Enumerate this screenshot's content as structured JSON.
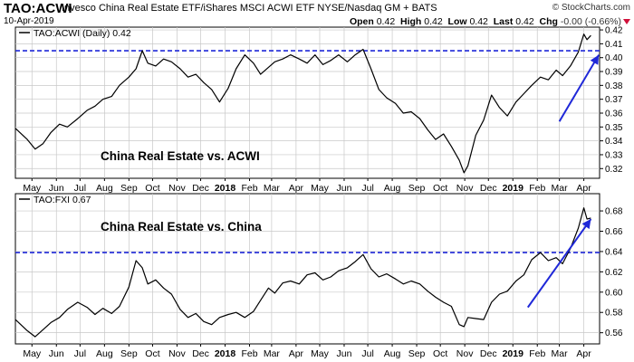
{
  "header": {
    "symbol": "TAO:ACWI",
    "description": "Invesco China Real Estate ETF/iShares MSCI ACWI ETF  NYSE/Nasdaq GM + BATS",
    "date": "10-Apr-2019",
    "brand": "© StockCharts.com",
    "open_label": "Open",
    "open": "0.42",
    "high_label": "High",
    "high": "0.42",
    "low_label": "Low",
    "low": "0.42",
    "last_label": "Last",
    "last": "0.42",
    "chg_label": "Chg",
    "chg": "-0.00 (-0.66%)",
    "change_color": "#d0103a"
  },
  "colors": {
    "price_line": "#000000",
    "trend_arrow": "#1f28d8",
    "resistance_line": "#1f28d8",
    "grid": "#c8c8c8"
  },
  "chart_data": [
    {
      "type": "line",
      "legend": "TAO:ACWI (Daily) 0.42",
      "annotation": "China Real Estate vs. ACWI",
      "y_ticks": [
        "0.32",
        "0.33",
        "0.34",
        "0.35",
        "0.36",
        "0.37",
        "0.38",
        "0.39",
        "0.40",
        "0.41",
        "0.42"
      ],
      "ylim": [
        0.313,
        0.422
      ],
      "resistance_level": 0.405,
      "trend_arrow": {
        "from": [
          "2019-03-01",
          0.354
        ],
        "to": [
          "2019-04-20",
          0.402
        ]
      },
      "series": [
        {
          "x": [
            "2017-04-10",
            "2017-04-25",
            "2017-05-05",
            "2017-05-15",
            "2017-05-25",
            "2017-06-05",
            "2017-06-15",
            "2017-06-28",
            "2017-07-10",
            "2017-07-20",
            "2017-07-30",
            "2017-08-10",
            "2017-08-20",
            "2017-09-01",
            "2017-09-10",
            "2017-09-18",
            "2017-09-25",
            "2017-10-05",
            "2017-10-15",
            "2017-10-25",
            "2017-11-05",
            "2017-11-15",
            "2017-11-25",
            "2017-12-05",
            "2017-12-15",
            "2017-12-25",
            "2018-01-05",
            "2018-01-15",
            "2018-01-26",
            "2018-02-06",
            "2018-02-15",
            "2018-02-25",
            "2018-03-05",
            "2018-03-15",
            "2018-03-25",
            "2018-04-05",
            "2018-04-15",
            "2018-04-25",
            "2018-05-05",
            "2018-05-15",
            "2018-05-25",
            "2018-06-05",
            "2018-06-15",
            "2018-06-25",
            "2018-07-05",
            "2018-07-15",
            "2018-07-25",
            "2018-08-05",
            "2018-08-15",
            "2018-08-25",
            "2018-09-05",
            "2018-09-15",
            "2018-09-25",
            "2018-10-05",
            "2018-10-15",
            "2018-10-25",
            "2018-10-31",
            "2018-11-05",
            "2018-11-15",
            "2018-11-25",
            "2018-12-05",
            "2018-12-15",
            "2018-12-25",
            "2019-01-05",
            "2019-01-15",
            "2019-01-25",
            "2019-02-05",
            "2019-02-15",
            "2019-02-25",
            "2019-03-05",
            "2019-03-15",
            "2019-03-25",
            "2019-04-01",
            "2019-04-05",
            "2019-04-10"
          ],
          "values": [
            0.349,
            0.341,
            0.334,
            0.338,
            0.346,
            0.352,
            0.35,
            0.356,
            0.362,
            0.365,
            0.37,
            0.372,
            0.38,
            0.386,
            0.392,
            0.405,
            0.396,
            0.394,
            0.399,
            0.397,
            0.392,
            0.386,
            0.388,
            0.382,
            0.377,
            0.368,
            0.378,
            0.392,
            0.402,
            0.396,
            0.388,
            0.393,
            0.397,
            0.399,
            0.402,
            0.399,
            0.396,
            0.402,
            0.395,
            0.398,
            0.402,
            0.397,
            0.402,
            0.406,
            0.392,
            0.377,
            0.371,
            0.367,
            0.36,
            0.361,
            0.356,
            0.348,
            0.341,
            0.345,
            0.336,
            0.326,
            0.317,
            0.322,
            0.344,
            0.355,
            0.373,
            0.364,
            0.358,
            0.368,
            0.374,
            0.38,
            0.386,
            0.384,
            0.391,
            0.387,
            0.394,
            0.404,
            0.417,
            0.413,
            0.416
          ]
        }
      ]
    },
    {
      "type": "line",
      "legend": "TAO:FXI 0.67",
      "annotation": "China Real Estate vs. China",
      "y_ticks": [
        "0.56",
        "0.58",
        "0.60",
        "0.62",
        "0.64",
        "0.66",
        "0.68"
      ],
      "ylim": [
        0.549,
        0.697
      ],
      "resistance_level": 0.639,
      "trend_arrow": {
        "from": [
          "2019-01-20",
          0.585
        ],
        "to": [
          "2019-04-10",
          0.672
        ]
      },
      "series": [
        {
          "x": [
            "2017-04-10",
            "2017-04-25",
            "2017-05-05",
            "2017-05-15",
            "2017-05-25",
            "2017-06-05",
            "2017-06-15",
            "2017-06-28",
            "2017-07-10",
            "2017-07-20",
            "2017-07-30",
            "2017-08-10",
            "2017-08-20",
            "2017-09-01",
            "2017-09-10",
            "2017-09-18",
            "2017-09-25",
            "2017-10-05",
            "2017-10-15",
            "2017-10-25",
            "2017-11-05",
            "2017-11-15",
            "2017-11-25",
            "2017-12-05",
            "2017-12-15",
            "2017-12-25",
            "2018-01-05",
            "2018-01-15",
            "2018-01-26",
            "2018-02-06",
            "2018-02-15",
            "2018-02-25",
            "2018-03-05",
            "2018-03-15",
            "2018-03-25",
            "2018-04-05",
            "2018-04-15",
            "2018-04-25",
            "2018-05-05",
            "2018-05-15",
            "2018-05-25",
            "2018-06-05",
            "2018-06-15",
            "2018-06-25",
            "2018-07-05",
            "2018-07-15",
            "2018-07-25",
            "2018-08-05",
            "2018-08-15",
            "2018-08-25",
            "2018-09-05",
            "2018-09-15",
            "2018-09-25",
            "2018-10-05",
            "2018-10-15",
            "2018-10-25",
            "2018-10-31",
            "2018-11-05",
            "2018-11-15",
            "2018-11-25",
            "2018-12-05",
            "2018-12-15",
            "2018-12-25",
            "2019-01-05",
            "2019-01-15",
            "2019-01-25",
            "2019-02-05",
            "2019-02-15",
            "2019-02-25",
            "2019-03-05",
            "2019-03-15",
            "2019-03-25",
            "2019-04-01",
            "2019-04-05",
            "2019-04-10"
          ],
          "values": [
            0.573,
            0.562,
            0.556,
            0.563,
            0.57,
            0.575,
            0.583,
            0.59,
            0.585,
            0.578,
            0.584,
            0.579,
            0.586,
            0.605,
            0.631,
            0.624,
            0.608,
            0.612,
            0.604,
            0.598,
            0.583,
            0.575,
            0.579,
            0.571,
            0.568,
            0.575,
            0.578,
            0.58,
            0.575,
            0.581,
            0.592,
            0.604,
            0.599,
            0.609,
            0.611,
            0.608,
            0.617,
            0.619,
            0.612,
            0.615,
            0.621,
            0.624,
            0.63,
            0.637,
            0.623,
            0.615,
            0.618,
            0.613,
            0.608,
            0.611,
            0.608,
            0.601,
            0.595,
            0.59,
            0.586,
            0.568,
            0.566,
            0.575,
            0.574,
            0.573,
            0.59,
            0.598,
            0.601,
            0.611,
            0.617,
            0.632,
            0.639,
            0.631,
            0.634,
            0.628,
            0.643,
            0.663,
            0.683,
            0.672,
            0.673
          ]
        }
      ]
    }
  ],
  "x_axis": {
    "start": "2017-04-10",
    "end": "2019-04-21",
    "ticks": [
      {
        "label": "May",
        "date": "2017-05-01",
        "bold": false
      },
      {
        "label": "Jun",
        "date": "2017-06-01",
        "bold": false
      },
      {
        "label": "Jul",
        "date": "2017-07-01",
        "bold": false
      },
      {
        "label": "Aug",
        "date": "2017-08-01",
        "bold": false
      },
      {
        "label": "Sep",
        "date": "2017-09-01",
        "bold": false
      },
      {
        "label": "Oct",
        "date": "2017-10-01",
        "bold": false
      },
      {
        "label": "Nov",
        "date": "2017-11-01",
        "bold": false
      },
      {
        "label": "Dec",
        "date": "2017-12-01",
        "bold": false
      },
      {
        "label": "2018",
        "date": "2018-01-01",
        "bold": true
      },
      {
        "label": "Feb",
        "date": "2018-02-01",
        "bold": false
      },
      {
        "label": "Mar",
        "date": "2018-03-01",
        "bold": false
      },
      {
        "label": "Apr",
        "date": "2018-04-01",
        "bold": false
      },
      {
        "label": "May",
        "date": "2018-05-01",
        "bold": false
      },
      {
        "label": "Jun",
        "date": "2018-06-01",
        "bold": false
      },
      {
        "label": "Jul",
        "date": "2018-07-01",
        "bold": false
      },
      {
        "label": "Aug",
        "date": "2018-08-01",
        "bold": false
      },
      {
        "label": "Sep",
        "date": "2018-09-01",
        "bold": false
      },
      {
        "label": "Oct",
        "date": "2018-10-01",
        "bold": false
      },
      {
        "label": "Nov",
        "date": "2018-11-01",
        "bold": false
      },
      {
        "label": "Dec",
        "date": "2018-12-01",
        "bold": false
      },
      {
        "label": "2019",
        "date": "2019-01-01",
        "bold": true
      },
      {
        "label": "Feb",
        "date": "2019-02-01",
        "bold": false
      },
      {
        "label": "Mar",
        "date": "2019-03-01",
        "bold": false
      },
      {
        "label": "Apr",
        "date": "2019-04-01",
        "bold": false
      }
    ]
  }
}
